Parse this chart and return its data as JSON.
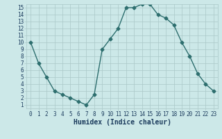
{
  "x": [
    0,
    1,
    2,
    3,
    4,
    5,
    6,
    7,
    8,
    9,
    10,
    11,
    12,
    13,
    14,
    15,
    16,
    17,
    18,
    19,
    20,
    21,
    22,
    23
  ],
  "y": [
    10,
    7,
    5,
    3,
    2.5,
    2,
    1.5,
    1,
    2.5,
    9,
    10.5,
    12,
    15,
    15,
    15.5,
    15.5,
    14,
    13.5,
    12.5,
    10,
    8,
    5.5,
    4,
    3
  ],
  "line_color": "#2d6e6e",
  "marker": "D",
  "marker_size": 2.5,
  "bg_color": "#cce8e8",
  "grid_major_color": "#aac8c8",
  "grid_minor_color": "#bbdada",
  "xlabel": "Humidex (Indice chaleur)",
  "xlabel_color": "#1a3a5c",
  "xlim": [
    -0.5,
    23.5
  ],
  "ylim": [
    0.5,
    15.5
  ],
  "xticks": [
    0,
    1,
    2,
    3,
    4,
    5,
    6,
    7,
    8,
    9,
    10,
    11,
    12,
    13,
    14,
    15,
    16,
    17,
    18,
    19,
    20,
    21,
    22,
    23
  ],
  "yticks": [
    1,
    2,
    3,
    4,
    5,
    6,
    7,
    8,
    9,
    10,
    11,
    12,
    13,
    14,
    15
  ],
  "tick_fontsize": 5.5,
  "xlabel_fontsize": 7.0,
  "lw": 1.0
}
